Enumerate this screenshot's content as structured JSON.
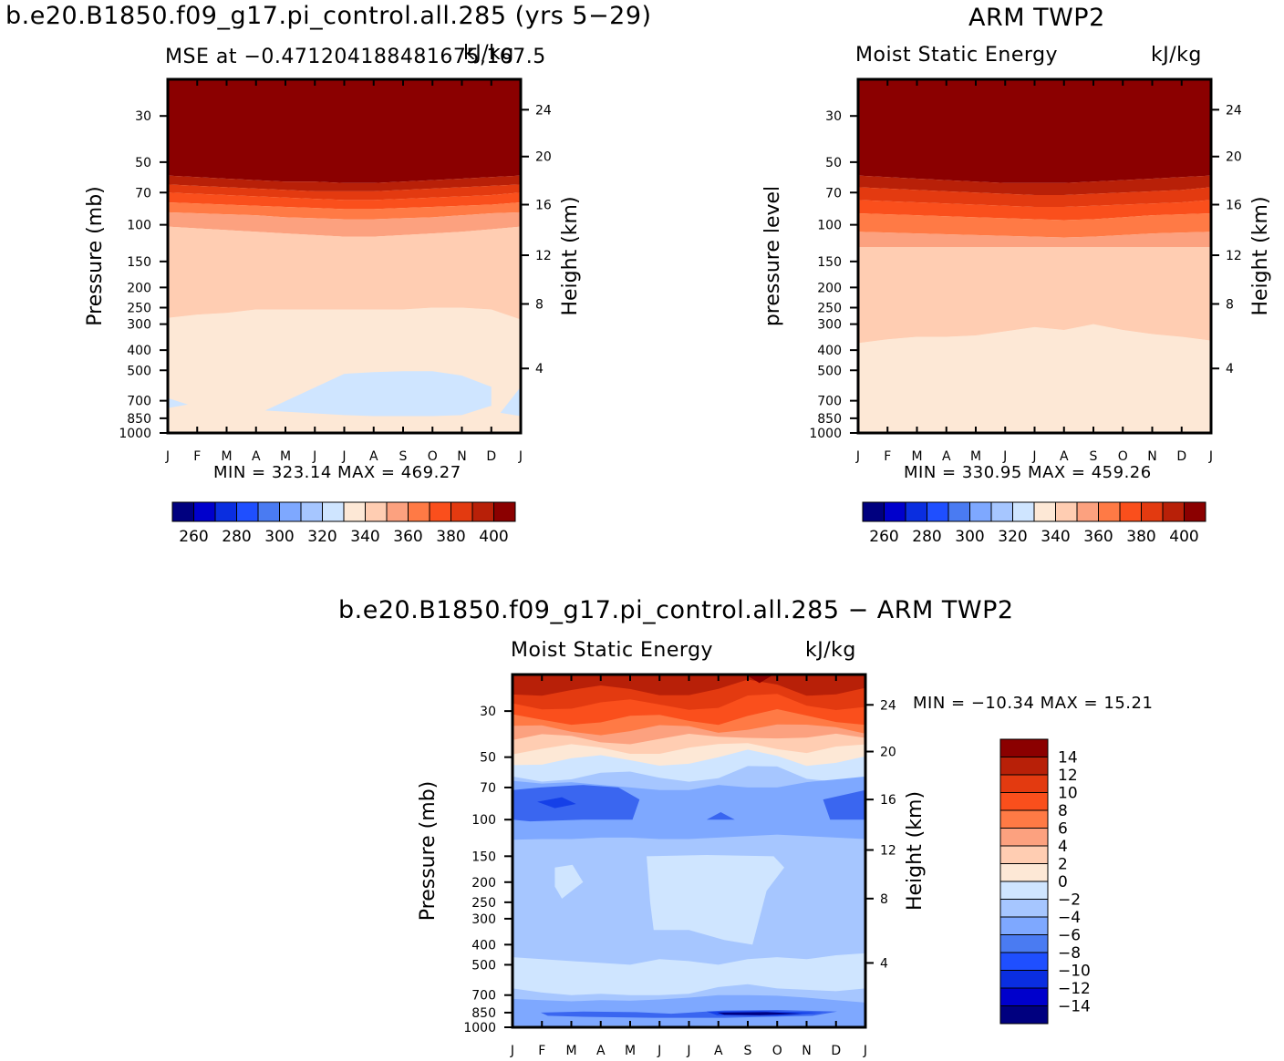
{
  "figure": {
    "case_title": "b.e20.B1850.f09_g17.pi_control.all.285 (yrs 5−29)",
    "obs_title": "ARM TWP2",
    "diff_title": "b.e20.B1850.f09_g17.pi_control.all.285 − ARM TWP2"
  },
  "units": "kJ/kg",
  "chart_data": [
    {
      "type": "heatmap",
      "id": "model",
      "title": "MSE at −0.471204188481675,167.5",
      "units": "kJ/kg",
      "ylabel_left": "Pressure (mb)",
      "ylabel_right": "Height (km)",
      "x_ticks": [
        "J",
        "F",
        "M",
        "A",
        "M",
        "J",
        "J",
        "A",
        "S",
        "O",
        "N",
        "D",
        "J"
      ],
      "p_ticks": [
        30,
        50,
        70,
        100,
        150,
        200,
        250,
        300,
        400,
        500,
        700,
        850,
        1000
      ],
      "height_ticks": [
        24,
        20,
        16,
        12,
        8,
        4
      ],
      "ylim": [
        1000,
        20
      ],
      "stats": "MIN = 323.14 MAX = 469.27",
      "colorbar_labels": [
        260,
        280,
        300,
        320,
        340,
        360,
        380,
        400
      ],
      "colorbar_levels": [
        255,
        260,
        265,
        270,
        275,
        280,
        285,
        290,
        295,
        300,
        305,
        310,
        315,
        320,
        325,
        330,
        335,
        340,
        345,
        350,
        355,
        360,
        365,
        370,
        375,
        380,
        385,
        390,
        395,
        400,
        405
      ],
      "contour_levels_shown": [
        320,
        330,
        340,
        350,
        360,
        370,
        380,
        390,
        400
      ],
      "approx_pressure_of_level_by_month": {
        "months": [
          "J",
          "F",
          "M",
          "A",
          "M",
          "J",
          "J",
          "A",
          "S",
          "O",
          "N",
          "D",
          "J"
        ],
        "320_top": [
          null,
          null,
          null,
          null,
          null,
          null,
          520,
          510,
          505,
          505,
          530,
          600,
          null
        ],
        "320_bottom": [
          null,
          null,
          null,
          null,
          null,
          null,
          820,
          830,
          830,
          830,
          820,
          740,
          null
        ],
        "330": [
          280,
          270,
          265,
          255,
          255,
          255,
          255,
          255,
          255,
          250,
          250,
          255,
          285
        ],
        "340": [
          102,
          104,
          106,
          108,
          110,
          112,
          114,
          114,
          112,
          110,
          108,
          105,
          102
        ],
        "350": [
          87,
          88,
          89,
          90,
          92,
          93,
          94,
          94,
          93,
          92,
          90,
          88,
          87
        ],
        "360": [
          78,
          79,
          80,
          81,
          82,
          83,
          84,
          84,
          83,
          82,
          81,
          80,
          78
        ],
        "370": [
          70,
          71,
          72,
          73,
          74,
          75,
          76,
          76,
          75,
          74,
          73,
          72,
          70
        ],
        "380": [
          64,
          65,
          66,
          67,
          68,
          69,
          69,
          69,
          68,
          67,
          66,
          65,
          64
        ],
        "390": [
          58,
          59,
          60,
          61,
          62,
          62,
          63,
          63,
          62,
          61,
          60,
          59,
          58
        ]
      }
    },
    {
      "type": "heatmap",
      "id": "obs",
      "title": "Moist Static Energy",
      "units": "kJ/kg",
      "ylabel_left": "pressure level",
      "ylabel_right": "Height (km)",
      "x_ticks": [
        "J",
        "F",
        "M",
        "A",
        "M",
        "J",
        "J",
        "A",
        "S",
        "O",
        "N",
        "D",
        "J"
      ],
      "p_ticks": [
        30,
        50,
        70,
        100,
        150,
        200,
        250,
        300,
        400,
        500,
        700,
        850,
        1000
      ],
      "height_ticks": [
        24,
        20,
        16,
        12,
        8,
        4
      ],
      "ylim": [
        1000,
        20
      ],
      "stats": "MIN = 330.95 MAX = 459.26",
      "colorbar_labels": [
        260,
        280,
        300,
        320,
        340,
        360,
        380,
        400
      ],
      "colorbar_levels": [
        255,
        260,
        265,
        270,
        275,
        280,
        285,
        290,
        295,
        300,
        305,
        310,
        315,
        320,
        325,
        330,
        335,
        340,
        345,
        350,
        355,
        360,
        365,
        370,
        375,
        380,
        385,
        390,
        395,
        400,
        405
      ],
      "approx_pressure_of_level_by_month": {
        "months": [
          "J",
          "F",
          "M",
          "A",
          "M",
          "J",
          "J",
          "A",
          "S",
          "O",
          "N",
          "D",
          "J"
        ],
        "330": [
          370,
          355,
          345,
          345,
          340,
          325,
          310,
          320,
          300,
          320,
          335,
          345,
          360
        ],
        "340": [
          128,
          128,
          128,
          128,
          128,
          128,
          128,
          128,
          128,
          128,
          128,
          128,
          128
        ],
        "350": [
          108,
          109,
          110,
          111,
          112,
          113,
          114,
          115,
          114,
          112,
          110,
          109,
          108
        ],
        "360": [
          88,
          89,
          90,
          91,
          92,
          93,
          94,
          95,
          94,
          92,
          90,
          89,
          88
        ],
        "370": [
          76,
          77,
          78,
          79,
          80,
          81,
          82,
          82,
          81,
          80,
          79,
          78,
          76
        ],
        "380": [
          66,
          67,
          68,
          69,
          70,
          71,
          72,
          72,
          71,
          70,
          69,
          68,
          66
        ],
        "390": [
          58,
          59,
          60,
          61,
          62,
          63,
          63,
          63,
          62,
          61,
          60,
          59,
          58
        ]
      }
    },
    {
      "type": "heatmap",
      "id": "diff",
      "title": "Moist Static Energy",
      "units": "kJ/kg",
      "ylabel_left": "Pressure (mb)",
      "ylabel_right": "Height (km)",
      "x_ticks": [
        "J",
        "F",
        "M",
        "A",
        "M",
        "J",
        "J",
        "A",
        "S",
        "O",
        "N",
        "D",
        "J"
      ],
      "p_ticks": [
        30,
        50,
        70,
        100,
        150,
        200,
        250,
        300,
        400,
        500,
        700,
        850,
        1000
      ],
      "height_ticks": [
        24,
        20,
        16,
        12,
        8,
        4
      ],
      "ylim": [
        1000,
        20
      ],
      "stats": "MIN = −10.34 MAX =  15.21",
      "colorbar_labels": [
        "14",
        "12",
        "10",
        "8",
        "6",
        "4",
        "2",
        "0",
        "−2",
        "−4",
        "−6",
        "−8",
        "−10",
        "−12",
        "−14"
      ],
      "colorbar_levels": [
        16,
        14,
        12,
        10,
        8,
        6,
        4,
        2,
        0,
        -2,
        -4,
        -6,
        -8,
        -10,
        -12,
        -14,
        -16
      ]
    }
  ],
  "colors": {
    "palette": [
      "#00007f",
      "#0000cc",
      "#0a2ee0",
      "#1f4fff",
      "#4a7bf2",
      "#7ea8ff",
      "#a6c6ff",
      "#cfe5ff",
      "#fde8d6",
      "#ffcdb2",
      "#fca17f",
      "#ff7a45",
      "#fa4f1c",
      "#e33a10",
      "#b82008",
      "#8b0000"
    ],
    "model_bands": [
      "#fde8d6",
      "#ffcdb2",
      "#fca17f",
      "#ff7a45",
      "#fa4f1c",
      "#e33a10",
      "#b82008",
      "#8b0000"
    ],
    "diff_colorbar": [
      "#8b0000",
      "#b82008",
      "#e33a10",
      "#fa4f1c",
      "#ff7a45",
      "#fca17f",
      "#ffcdb2",
      "#fde8d6",
      "#cfe5ff",
      "#a6c6ff",
      "#7ea8ff",
      "#4a7bf2",
      "#1f4fff",
      "#0a2ee0",
      "#0000cc",
      "#00007f"
    ],
    "diff_ramp": [
      "#00007f",
      "#1540e8",
      "#3a66f0",
      "#7ea8ff",
      "#a6c6ff",
      "#cfe5ff",
      "#fde8d6",
      "#ffcdb2",
      "#fca17f",
      "#ff7a45",
      "#fa4f1c",
      "#e33a10",
      "#b82008",
      "#8b0000"
    ],
    "below320": "#cfe5ff",
    "axis": "#000000",
    "background": "#ffffff"
  }
}
